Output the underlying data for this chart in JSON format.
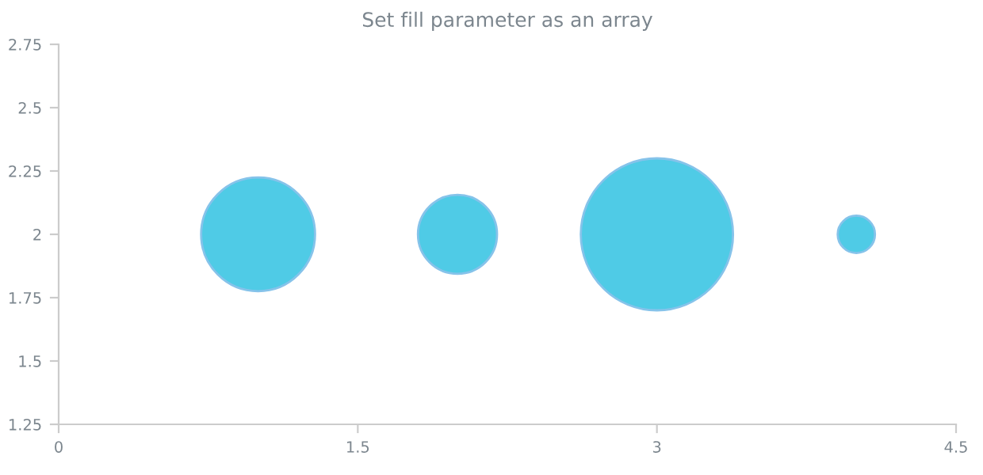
{
  "chart_data": {
    "type": "bubble",
    "title": "Set fill parameter as an array",
    "x": [
      1,
      2,
      3,
      4
    ],
    "series": [
      {
        "color": "#4fcbe6",
        "values": [
          2,
          2,
          2,
          2
        ],
        "sizes": [
          0.56,
          0.27,
          1,
          0.06
        ]
      }
    ],
    "xlim": [
      0,
      4.5
    ],
    "xticks": [
      0,
      1.5,
      3,
      4.5
    ],
    "ylim": [
      1.25,
      2.75
    ],
    "yticks": [
      1.25,
      1.5,
      1.75,
      2,
      2.25,
      2.5,
      2.75
    ],
    "grid": false
  }
}
